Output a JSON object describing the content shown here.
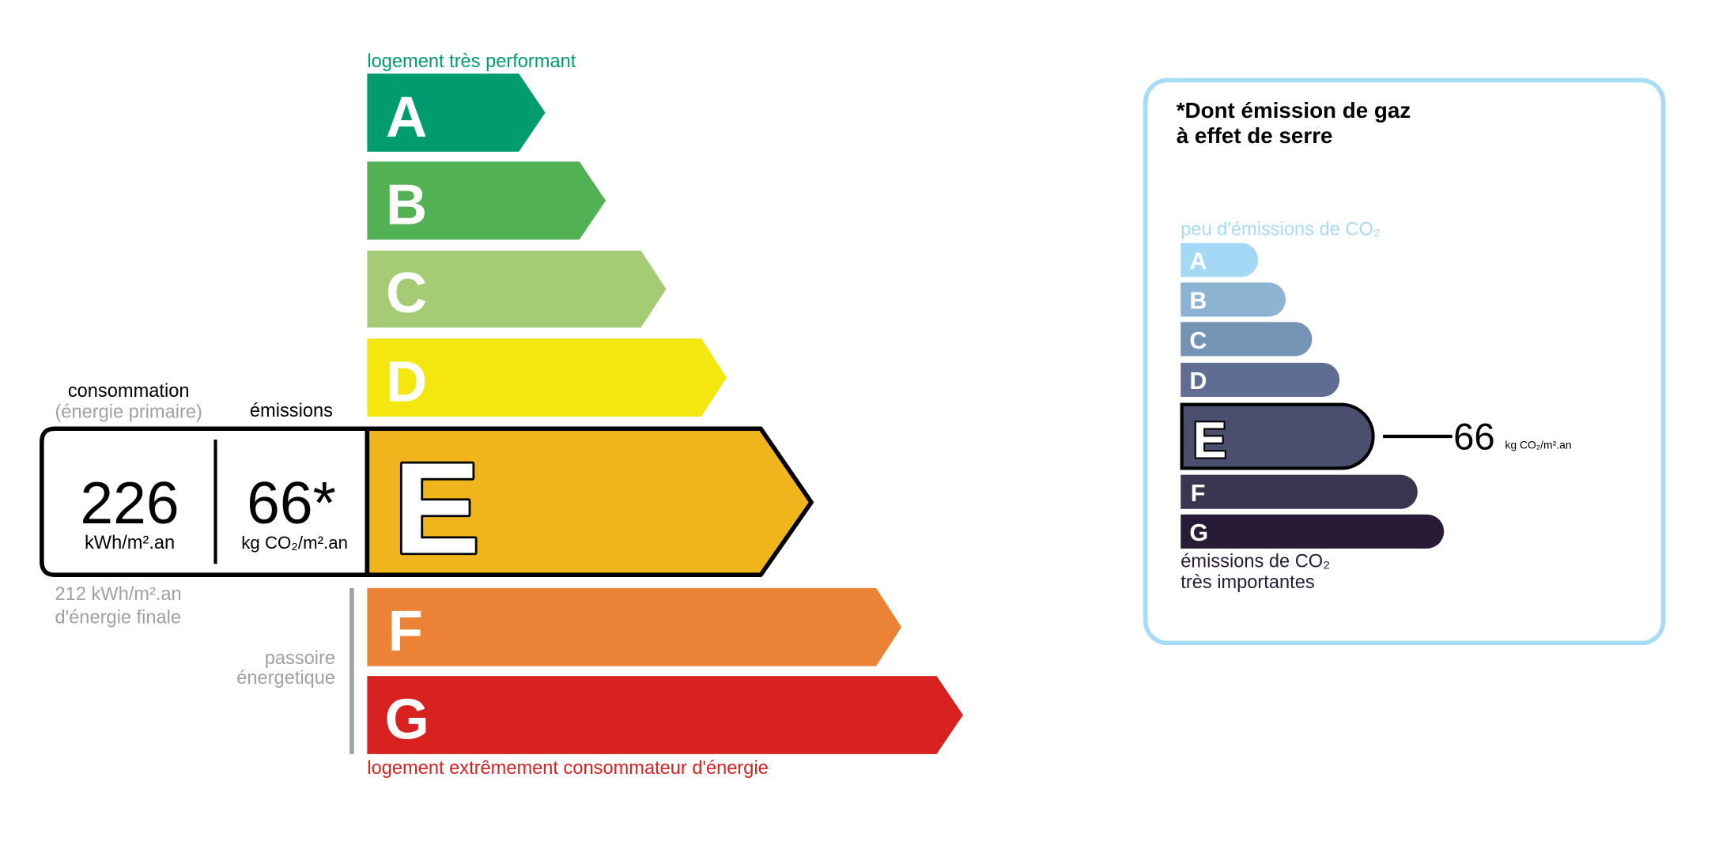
{
  "energy": {
    "top_label": "logement très performant",
    "bottom_label": "logement extrêmement consommateur d'énergie",
    "classes": [
      {
        "letter": "A",
        "color": "#009c6d"
      },
      {
        "letter": "B",
        "color": "#52b153"
      },
      {
        "letter": "C",
        "color": "#a5cc74"
      },
      {
        "letter": "D",
        "color": "#f4e70f"
      },
      {
        "letter": "E",
        "color": "#f0b41c"
      },
      {
        "letter": "F",
        "color": "#ec8236"
      },
      {
        "letter": "G",
        "color": "#d7221f"
      }
    ],
    "current_class": "E",
    "consumption_label": "consommation",
    "consumption_sublabel": "(énergie primaire)",
    "emissions_label": "émissions",
    "consumption_value": "226",
    "consumption_unit": "kWh/m².an",
    "emissions_value": "66*",
    "emissions_unit": "kg CO₂/m².an",
    "final_energy_value": "212 kWh/m².an",
    "final_energy_label": "d'énergie finale",
    "passoire_line1": "passoire",
    "passoire_line2": "énergetique"
  },
  "ges": {
    "title_line1": "*Dont émission de gaz",
    "title_line2": "à effet de serre",
    "top_label": "peu d'émissions de CO₂",
    "bottom_line1": "émissions de CO₂",
    "bottom_line2": "très importantes",
    "classes": [
      {
        "letter": "A",
        "color": "#a4d9f6"
      },
      {
        "letter": "B",
        "color": "#8db3d3"
      },
      {
        "letter": "C",
        "color": "#7593b4"
      },
      {
        "letter": "D",
        "color": "#5e6d91"
      },
      {
        "letter": "E",
        "color": "#4b4f6e"
      },
      {
        "letter": "F",
        "color": "#383651"
      },
      {
        "letter": "G",
        "color": "#281b35"
      }
    ],
    "current_class": "E",
    "value": "66",
    "unit": "kg CO₂/m².an",
    "border_color": "#a6dcf5"
  }
}
